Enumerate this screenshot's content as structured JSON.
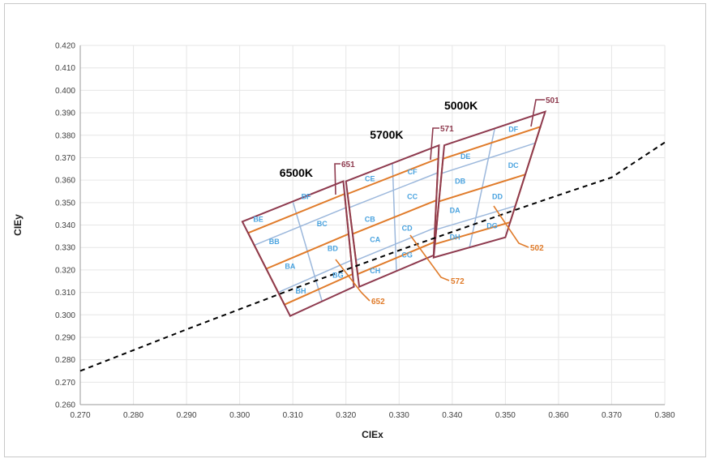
{
  "chart_data": {
    "type": "scatter",
    "xlabel": "CIEx",
    "ylabel": "CIEy",
    "xlim": [
      0.27,
      0.38
    ],
    "ylim": [
      0.26,
      0.42
    ],
    "xticks": [
      "0.270",
      "0.280",
      "0.290",
      "0.300",
      "0.310",
      "0.320",
      "0.330",
      "0.340",
      "0.350",
      "0.360",
      "0.370",
      "0.380"
    ],
    "yticks": [
      "0.260",
      "0.270",
      "0.280",
      "0.290",
      "0.300",
      "0.310",
      "0.320",
      "0.330",
      "0.340",
      "0.350",
      "0.360",
      "0.370",
      "0.380",
      "0.390",
      "0.400",
      "0.410",
      "0.420"
    ],
    "grid": true,
    "colors": {
      "outer": "#8e3a4e",
      "orange": "#e07b2a",
      "inner": "#9cb8dc",
      "bin_label": "#4aa3df",
      "locus": "#000000",
      "grid": "#e6e6e6"
    },
    "locus": [
      [
        0.27,
        0.275
      ],
      [
        0.29,
        0.2935
      ],
      [
        0.31,
        0.3115
      ],
      [
        0.33,
        0.3287
      ],
      [
        0.35,
        0.3452
      ],
      [
        0.36,
        0.3533
      ],
      [
        0.37,
        0.3612
      ],
      [
        0.38,
        0.3768
      ]
    ],
    "quads": [
      {
        "title": "6500K",
        "corners": [
          [
            0.3005,
            0.3415
          ],
          [
            0.3195,
            0.3595
          ],
          [
            0.3215,
            0.3125
          ],
          [
            0.3095,
            0.2995
          ]
        ],
        "bins": [
          {
            "name": "BF",
            "x": 0.3125,
            "y": 0.3515
          },
          {
            "name": "BE",
            "x": 0.3035,
            "y": 0.3415
          },
          {
            "name": "BC",
            "x": 0.3155,
            "y": 0.3395
          },
          {
            "name": "BB",
            "x": 0.3065,
            "y": 0.3315
          },
          {
            "name": "BD",
            "x": 0.3175,
            "y": 0.3285
          },
          {
            "name": "BA",
            "x": 0.3095,
            "y": 0.3205
          },
          {
            "name": "BG",
            "x": 0.3185,
            "y": 0.3165
          },
          {
            "name": "BH",
            "x": 0.3115,
            "y": 0.3095
          }
        ]
      },
      {
        "title": "5700K",
        "corners": [
          [
            0.32,
            0.3595
          ],
          [
            0.3375,
            0.3755
          ],
          [
            0.3365,
            0.3265
          ],
          [
            0.3225,
            0.3125
          ]
        ],
        "bins": [
          {
            "name": "CF",
            "x": 0.3325,
            "y": 0.3625
          },
          {
            "name": "CE",
            "x": 0.3245,
            "y": 0.3595
          },
          {
            "name": "CC",
            "x": 0.3325,
            "y": 0.3515
          },
          {
            "name": "CB",
            "x": 0.3245,
            "y": 0.3415
          },
          {
            "name": "CD",
            "x": 0.3315,
            "y": 0.3375
          },
          {
            "name": "CA",
            "x": 0.3255,
            "y": 0.3325
          },
          {
            "name": "CG",
            "x": 0.3315,
            "y": 0.3255
          },
          {
            "name": "CH",
            "x": 0.3255,
            "y": 0.3185
          }
        ]
      },
      {
        "title": "5000K",
        "corners": [
          [
            0.3385,
            0.3755
          ],
          [
            0.3575,
            0.3905
          ],
          [
            0.35,
            0.3345
          ],
          [
            0.3365,
            0.3255
          ]
        ],
        "bins": [
          {
            "name": "DF",
            "x": 0.3515,
            "y": 0.3815
          },
          {
            "name": "DE",
            "x": 0.3425,
            "y": 0.3695
          },
          {
            "name": "DC",
            "x": 0.3515,
            "y": 0.3655
          },
          {
            "name": "DB",
            "x": 0.3415,
            "y": 0.3585
          },
          {
            "name": "DD",
            "x": 0.3485,
            "y": 0.3515
          },
          {
            "name": "DA",
            "x": 0.3405,
            "y": 0.3455
          },
          {
            "name": "DG",
            "x": 0.3475,
            "y": 0.3385
          },
          {
            "name": "DH",
            "x": 0.3405,
            "y": 0.3335
          }
        ]
      }
    ],
    "cct_titles": [
      {
        "text": "6500K",
        "x": 0.3075,
        "y": 0.3615
      },
      {
        "text": "5700K",
        "x": 0.3245,
        "y": 0.3785
      },
      {
        "text": "5000K",
        "x": 0.3385,
        "y": 0.3915
      }
    ],
    "callouts": [
      {
        "label": "651",
        "color": "outer"
      },
      {
        "label": "571",
        "color": "outer"
      },
      {
        "label": "501",
        "color": "outer"
      },
      {
        "label": "652",
        "color": "orange"
      },
      {
        "label": "572",
        "color": "orange"
      },
      {
        "label": "502",
        "color": "orange"
      }
    ]
  }
}
